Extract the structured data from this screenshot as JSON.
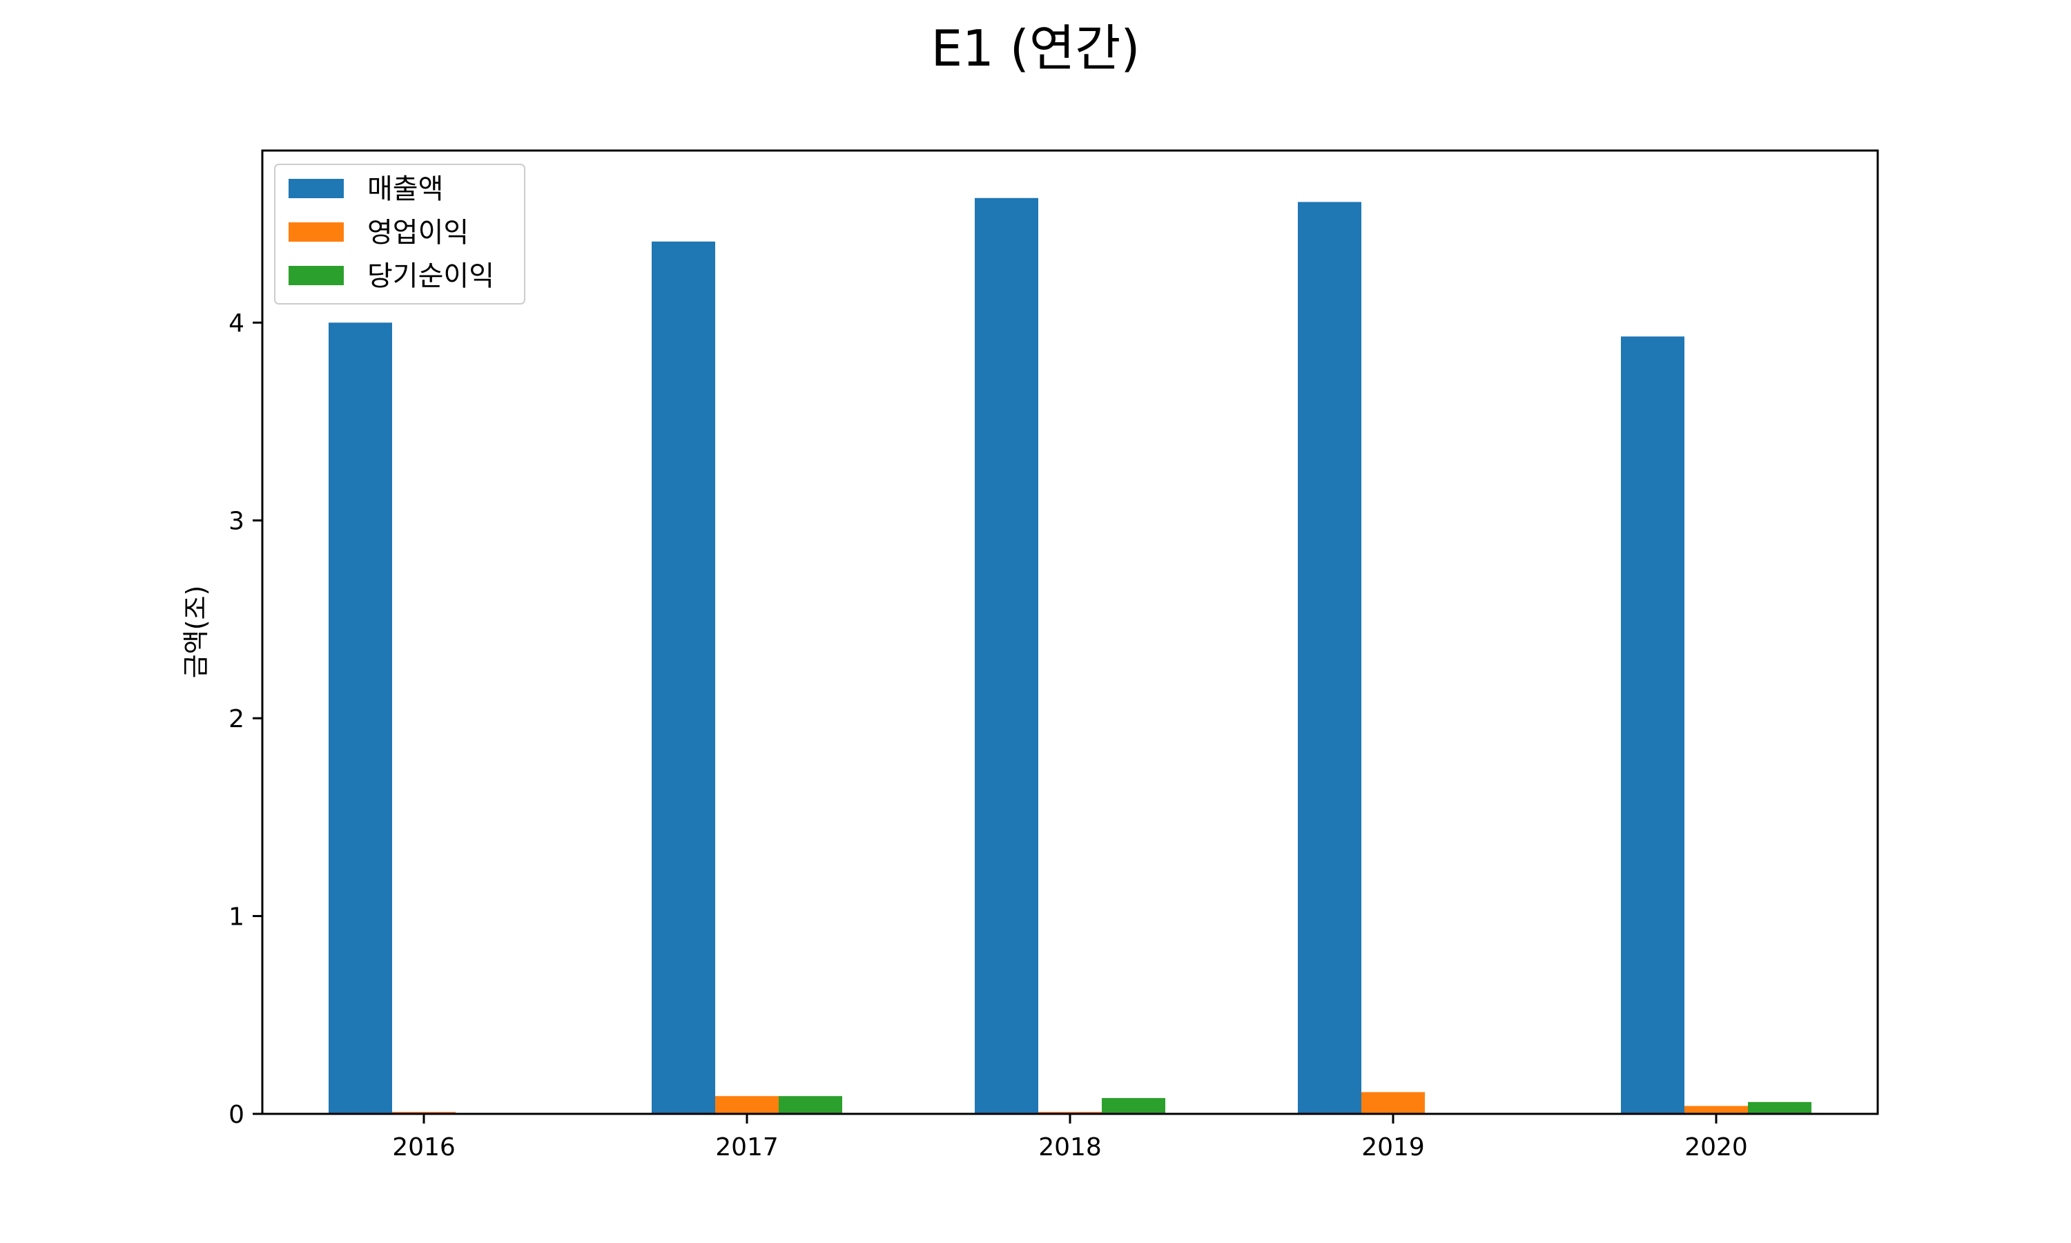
{
  "chart_data": {
    "type": "bar",
    "title": "E1 (연간)",
    "xlabel": "",
    "ylabel": "금액(조)",
    "categories": [
      "2016",
      "2017",
      "2018",
      "2019",
      "2020"
    ],
    "series": [
      {
        "name": "매출액",
        "color": "#1f77b4",
        "values": [
          4.0,
          4.41,
          4.63,
          4.61,
          3.93
        ]
      },
      {
        "name": "영업이익",
        "color": "#ff7f0e",
        "values": [
          0.01,
          0.09,
          0.01,
          0.11,
          0.04
        ]
      },
      {
        "name": "당기순이익",
        "color": "#2ca02c",
        "values": [
          0.0,
          0.09,
          0.08,
          0.0,
          0.06
        ]
      }
    ],
    "ylim": [
      0,
      4.87
    ],
    "yticks": [
      0,
      1,
      2,
      3,
      4
    ],
    "grid": false,
    "legend_position": "top-left"
  }
}
